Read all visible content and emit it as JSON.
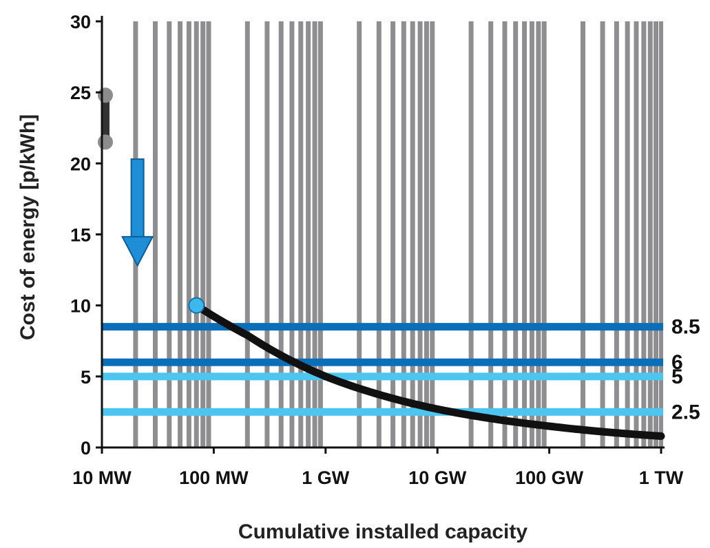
{
  "chart_data": {
    "type": "line",
    "xlabel": "Cumulative installed capacity",
    "ylabel": "Cost of energy [p/kWh]",
    "x_scale": "log",
    "x_unit": "MW",
    "xlim": [
      10,
      1000000
    ],
    "ylim": [
      0,
      30
    ],
    "x_ticks": [
      {
        "value": 10,
        "label": "10 MW"
      },
      {
        "value": 100,
        "label": "100 MW"
      },
      {
        "value": 1000,
        "label": "1 GW"
      },
      {
        "value": 10000,
        "label": "10 GW"
      },
      {
        "value": 100000,
        "label": "100 GW"
      },
      {
        "value": 1000000,
        "label": "1 TW"
      }
    ],
    "y_ticks": [
      0,
      5,
      10,
      15,
      20,
      25,
      30
    ],
    "grid": "vertical log gridlines",
    "series": [
      {
        "style": "curve",
        "color": "#111111",
        "points": [
          {
            "x": 70,
            "y": 10
          },
          {
            "x": 200,
            "y": 7.9
          },
          {
            "x": 1000,
            "y": 5.0
          },
          {
            "x": 10000,
            "y": 2.7
          },
          {
            "x": 100000,
            "y": 1.5
          },
          {
            "x": 1000000,
            "y": 0.8
          }
        ]
      },
      {
        "style": "range",
        "color": "#333333",
        "marker_color": "#8c8c8c",
        "points": [
          {
            "x": 10,
            "y": 24.8
          },
          {
            "x": 10,
            "y": 21.5
          }
        ]
      }
    ],
    "highlight_point": {
      "x": 70,
      "y": 10,
      "color": "#3db8ec"
    },
    "reference_lines": [
      {
        "value": 8.5,
        "label": "8.5",
        "color": "#0a6fb8"
      },
      {
        "value": 6,
        "label": "6",
        "color": "#0a6fb8"
      },
      {
        "value": 5,
        "label": "5",
        "color": "#4cc6f0"
      },
      {
        "value": 2.5,
        "label": "2.5",
        "color": "#4cc6f0"
      }
    ],
    "arrow": {
      "x": 25,
      "y_from": 20.3,
      "y_to": 12.8,
      "color": "#1e8fd6",
      "direction": "down"
    },
    "colors": {
      "grid": "#8e8e90",
      "axis": "#111111"
    }
  }
}
